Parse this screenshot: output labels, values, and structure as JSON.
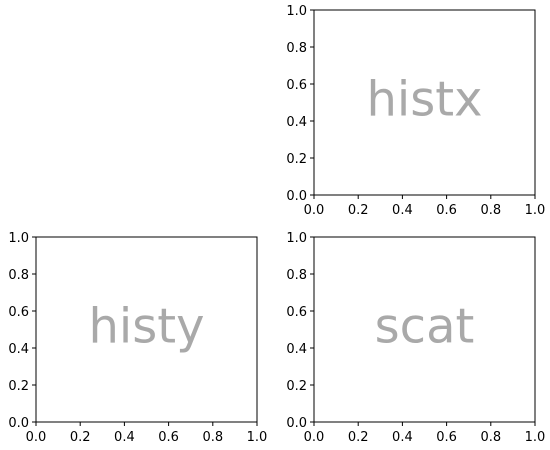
{
  "chart_data": [
    {
      "id": "histx",
      "type": "scatter",
      "title": "",
      "xlabel": "",
      "ylabel": "",
      "xlim": [
        0,
        1
      ],
      "ylim": [
        0,
        1
      ],
      "xticks": [
        "0.0",
        "0.2",
        "0.4",
        "0.6",
        "0.8",
        "1.0"
      ],
      "yticks": [
        "0.0",
        "0.2",
        "0.4",
        "0.6",
        "0.8",
        "1.0"
      ],
      "grid": false,
      "series": [],
      "annotation": {
        "text": "histx",
        "x": 0.5,
        "y": 0.5,
        "color": "#a9a9a9"
      }
    },
    {
      "id": "histy",
      "type": "scatter",
      "title": "",
      "xlabel": "",
      "ylabel": "",
      "xlim": [
        0,
        1
      ],
      "ylim": [
        0,
        1
      ],
      "xticks": [
        "0.0",
        "0.2",
        "0.4",
        "0.6",
        "0.8",
        "1.0"
      ],
      "yticks": [
        "0.0",
        "0.2",
        "0.4",
        "0.6",
        "0.8",
        "1.0"
      ],
      "grid": false,
      "series": [],
      "annotation": {
        "text": "histy",
        "x": 0.5,
        "y": 0.5,
        "color": "#a9a9a9"
      }
    },
    {
      "id": "scat",
      "type": "scatter",
      "title": "",
      "xlabel": "",
      "ylabel": "",
      "xlim": [
        0,
        1
      ],
      "ylim": [
        0,
        1
      ],
      "xticks": [
        "0.0",
        "0.2",
        "0.4",
        "0.6",
        "0.8",
        "1.0"
      ],
      "yticks": [
        "0.0",
        "0.2",
        "0.4",
        "0.6",
        "0.8",
        "1.0"
      ],
      "grid": false,
      "series": [],
      "annotation": {
        "text": "scat",
        "x": 0.5,
        "y": 0.5,
        "color": "#a9a9a9"
      }
    }
  ]
}
